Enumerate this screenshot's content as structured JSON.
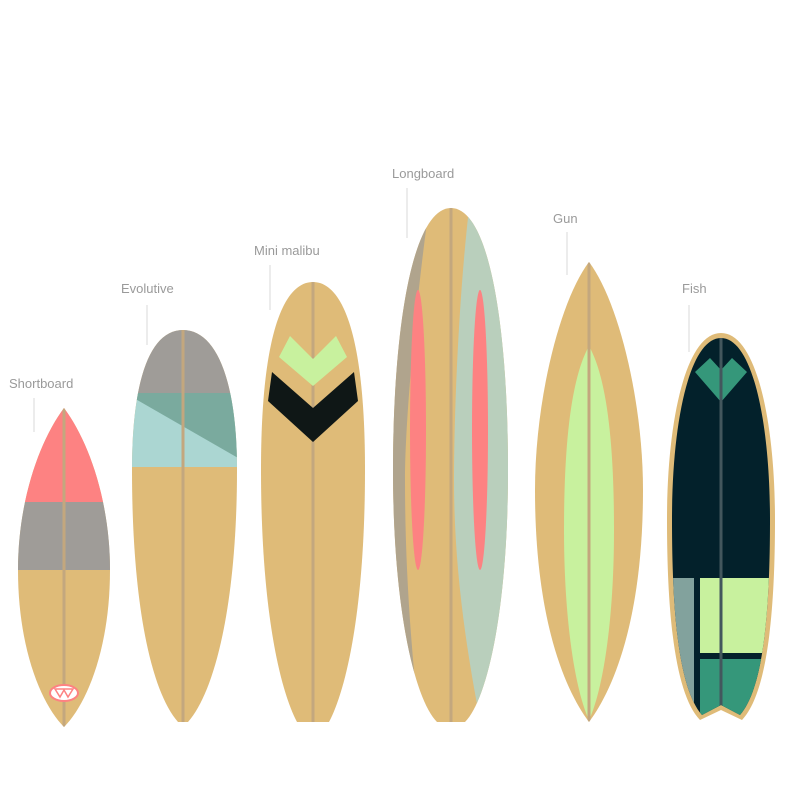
{
  "boards": [
    {
      "id": "shortboard",
      "label": "Shortboard"
    },
    {
      "id": "evolutive",
      "label": "Evolutive"
    },
    {
      "id": "mini-malibu",
      "label": "Mini malibu"
    },
    {
      "id": "longboard",
      "label": "Longboard"
    },
    {
      "id": "gun",
      "label": "Gun"
    },
    {
      "id": "fish",
      "label": "Fish"
    }
  ],
  "colors": {
    "wood": "#dfbb78",
    "stringer": "#c3a77e",
    "coral": "#fd8282",
    "grey": "#9f9c98",
    "aqua": "#abd6d2",
    "teal": "#7aaa9e",
    "lime": "#c8f19e",
    "black": "#0f1716",
    "navy": "#03212b",
    "taupe": "#b0a48d",
    "sage": "#b9cfbc",
    "green": "#35977a",
    "fishgrey": "#82a29d"
  }
}
